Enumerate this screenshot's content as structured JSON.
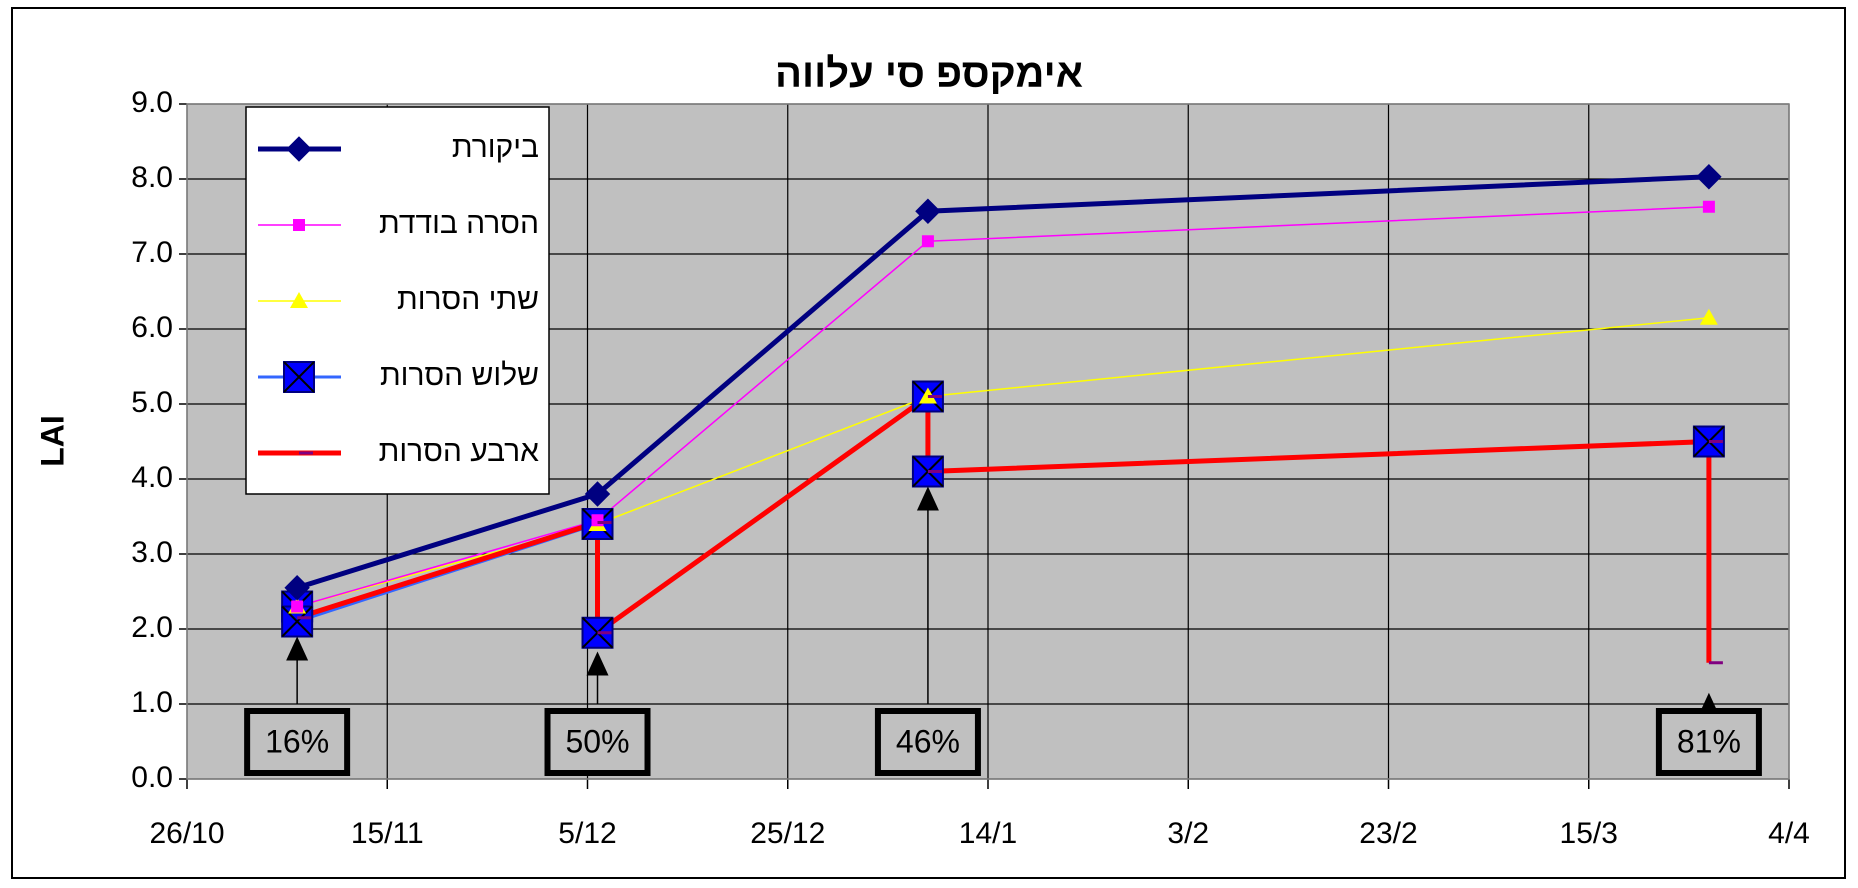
{
  "chart_data": {
    "type": "line",
    "title": "אימקספ סי עלווה",
    "y_label": "LAI",
    "xlim": [
      "26/10",
      "4/4"
    ],
    "xticks": [
      "26/10",
      "15/11",
      "5/12",
      "25/12",
      "14/1",
      "3/2",
      "23/2",
      "15/3",
      "4/4"
    ],
    "ylim": [
      0,
      9
    ],
    "yticks": [
      {
        "value": 0,
        "label": "0.0"
      },
      {
        "value": 1,
        "label": "1.0"
      },
      {
        "value": 2,
        "label": "2.0"
      },
      {
        "value": 3,
        "label": "3.0"
      },
      {
        "value": 4,
        "label": "4.0"
      },
      {
        "value": 5,
        "label": "5.0"
      },
      {
        "value": 6,
        "label": "6.0"
      },
      {
        "value": 7,
        "label": "7.0"
      },
      {
        "value": 8,
        "label": "8.0"
      },
      {
        "value": 9,
        "label": "9.0"
      }
    ],
    "grid": true,
    "series": [
      {
        "name": "ביקורת",
        "color": "#000080",
        "marker": "diamond",
        "width": 5,
        "x": [
          "6/11",
          "6/12",
          "8/1",
          "27/3"
        ],
        "values": [
          2.55,
          3.8,
          7.57,
          8.03
        ]
      },
      {
        "name": "הסרה בודדת",
        "color": "#ff00ff",
        "marker": "square",
        "width": 1.5,
        "x": [
          "6/11",
          "6/12",
          "8/1",
          "27/3"
        ],
        "values": [
          2.3,
          3.45,
          7.17,
          7.63
        ]
      },
      {
        "name": "שתי הסרות",
        "color": "#ffff00",
        "marker": "triangle",
        "width": 1.5,
        "x": [
          "6/11",
          "6/12",
          "8/1",
          "27/3"
        ],
        "values": [
          2.3,
          3.4,
          5.1,
          6.15
        ]
      },
      {
        "name": "שלוש הסרות",
        "color": "#3366ff",
        "marker": "xsquare",
        "width": 3,
        "x": [
          "6/11",
          "6/11",
          "6/12",
          "6/12",
          "8/1",
          "8/1",
          "27/3"
        ],
        "values": [
          2.3,
          2.1,
          3.4,
          1.95,
          5.1,
          4.1,
          4.5
        ]
      },
      {
        "name": "ארבע הסרות",
        "color": "#ff0000",
        "marker": "dash",
        "width": 5,
        "x": [
          "6/11",
          "6/12",
          "6/12",
          "8/1",
          "8/1",
          "27/3",
          "27/3"
        ],
        "values": [
          2.15,
          3.42,
          1.95,
          5.1,
          4.1,
          4.5,
          1.55
        ]
      }
    ],
    "annotations": [
      {
        "text": "16%",
        "x": "6/11",
        "arrow_to": 1.9
      },
      {
        "text": "50%",
        "x": "6/12",
        "arrow_to": 1.7
      },
      {
        "text": "46%",
        "x": "8/1",
        "arrow_to": 3.9
      },
      {
        "text": "81%",
        "x": "27/3",
        "arrow_to": 1.15
      }
    ]
  }
}
